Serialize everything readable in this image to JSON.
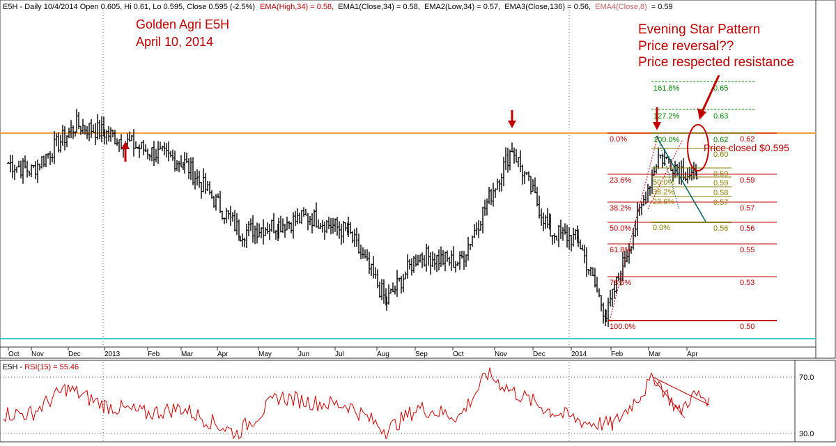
{
  "header": {
    "ticker": "E5H",
    "meta": "Daily 10/4/2014 Open 0.605, Hi 0.61, Lo 0.595, Close 0.595 (-2.5%)",
    "ema_high": "EMA(High,34) = 0.58,",
    "ema1": "EMA1(Close,34) = 0.58,",
    "ema2": "EMA2(Low,34) = 0.57,",
    "ema3": "EMA3(Close,136) = 0.56,",
    "ema4": "EMA4(Close,8)",
    "ema4_value": "= 0.59"
  },
  "annotations": {
    "title_line1": "Golden Agri E5H",
    "title_line2": "April 10, 2014",
    "pattern_line1": "Evening Star Pattern",
    "pattern_line2": "Price reversal??",
    "pattern_line3": "Price respected resistance",
    "price_closed": "Price closed $0.595"
  },
  "rsi_header": {
    "ticker": "E5H",
    "label": "RSI(15) = 55.46"
  },
  "colors": {
    "price_bars": "#000000",
    "resistance": "#f5a040",
    "support": "#40c8c8",
    "fib_red": "#c00000",
    "fib_green": "#008800",
    "fib_olive": "#8a7f00",
    "annotation_red": "#c00000",
    "rsi_line": "#d00000",
    "trend_line": "#006060"
  },
  "chart_data": [
    {
      "type": "ohlc",
      "title": "Golden Agri E5H",
      "ylim": [
        0.485,
        0.705
      ],
      "x_ticks": [
        "Oct",
        "Nov",
        "Dec",
        "2013",
        "Feb",
        "Mar",
        "Apr",
        "May",
        "Jun",
        "Jul",
        "Aug",
        "Sep",
        "Oct",
        "Nov",
        "Dec",
        "2014",
        "Feb",
        "Mar",
        "Apr"
      ],
      "close_path": [
        [
          "Oct 2012",
          0.605
        ],
        [
          "Nov 2012",
          0.6
        ],
        [
          "Dec 2012",
          0.63
        ],
        [
          "2013",
          0.625
        ],
        [
          "Feb 2013",
          0.615
        ],
        [
          "Mar 2013",
          0.605
        ],
        [
          "Apr 2013",
          0.56
        ],
        [
          "May 2013",
          0.565
        ],
        [
          "Jun 2013",
          0.57
        ],
        [
          "Jul 2013",
          0.56
        ],
        [
          "Aug 2013",
          0.515
        ],
        [
          "Sep 2013",
          0.545
        ],
        [
          "Oct 2013",
          0.54
        ],
        [
          "Nov 2013",
          0.615
        ],
        [
          "Dec 2013",
          0.56
        ],
        [
          "2014",
          0.555
        ],
        [
          "Feb 2014",
          0.505
        ],
        [
          "Mar 2014",
          0.61
        ],
        [
          "Apr 2014",
          0.595
        ]
      ],
      "horizontal_lines": [
        {
          "name": "resistance",
          "value": 0.62
        },
        {
          "name": "support",
          "value": 0.49
        }
      ],
      "markers": [
        "down-arrow at Nov 2013 high",
        "up-arrow at Jan 2013 low",
        "down-arrow at Mar 2014 high"
      ],
      "fib_retracement_major": [
        {
          "label": "0.0%",
          "price": "0.62"
        },
        {
          "label": "23.6%",
          "price": "0.59"
        },
        {
          "label": "38.2%",
          "price": "0.57"
        },
        {
          "label": "50.0%",
          "price": "0.56"
        },
        {
          "label": "61.8%",
          "price": "0.55"
        },
        {
          "label": "78.6%",
          "price": "0.53"
        },
        {
          "label": "100.0%",
          "price": "0.50"
        }
      ],
      "fib_extension": [
        {
          "label": "161.8%",
          "price": "0.65"
        },
        {
          "label": "127.2%",
          "price": "0.63"
        },
        {
          "label": "100.0%",
          "price": "0.62"
        }
      ],
      "fib_retracement_minor": [
        {
          "label": "",
          "price": "0.60"
        },
        {
          "label": "",
          "price": "0.59"
        },
        {
          "label": "50.0%",
          "price": "0.59"
        },
        {
          "label": "38.2%",
          "price": "0.58"
        },
        {
          "label": "23.6%",
          "price": "0.57"
        },
        {
          "label": "0.0%",
          "price": "0.56"
        }
      ]
    },
    {
      "type": "line",
      "title": "RSI(15) = 55.46",
      "ylim": [
        25,
        78
      ],
      "y_ticks": [
        "70.0",
        "30.0"
      ],
      "current": 55.46
    }
  ]
}
